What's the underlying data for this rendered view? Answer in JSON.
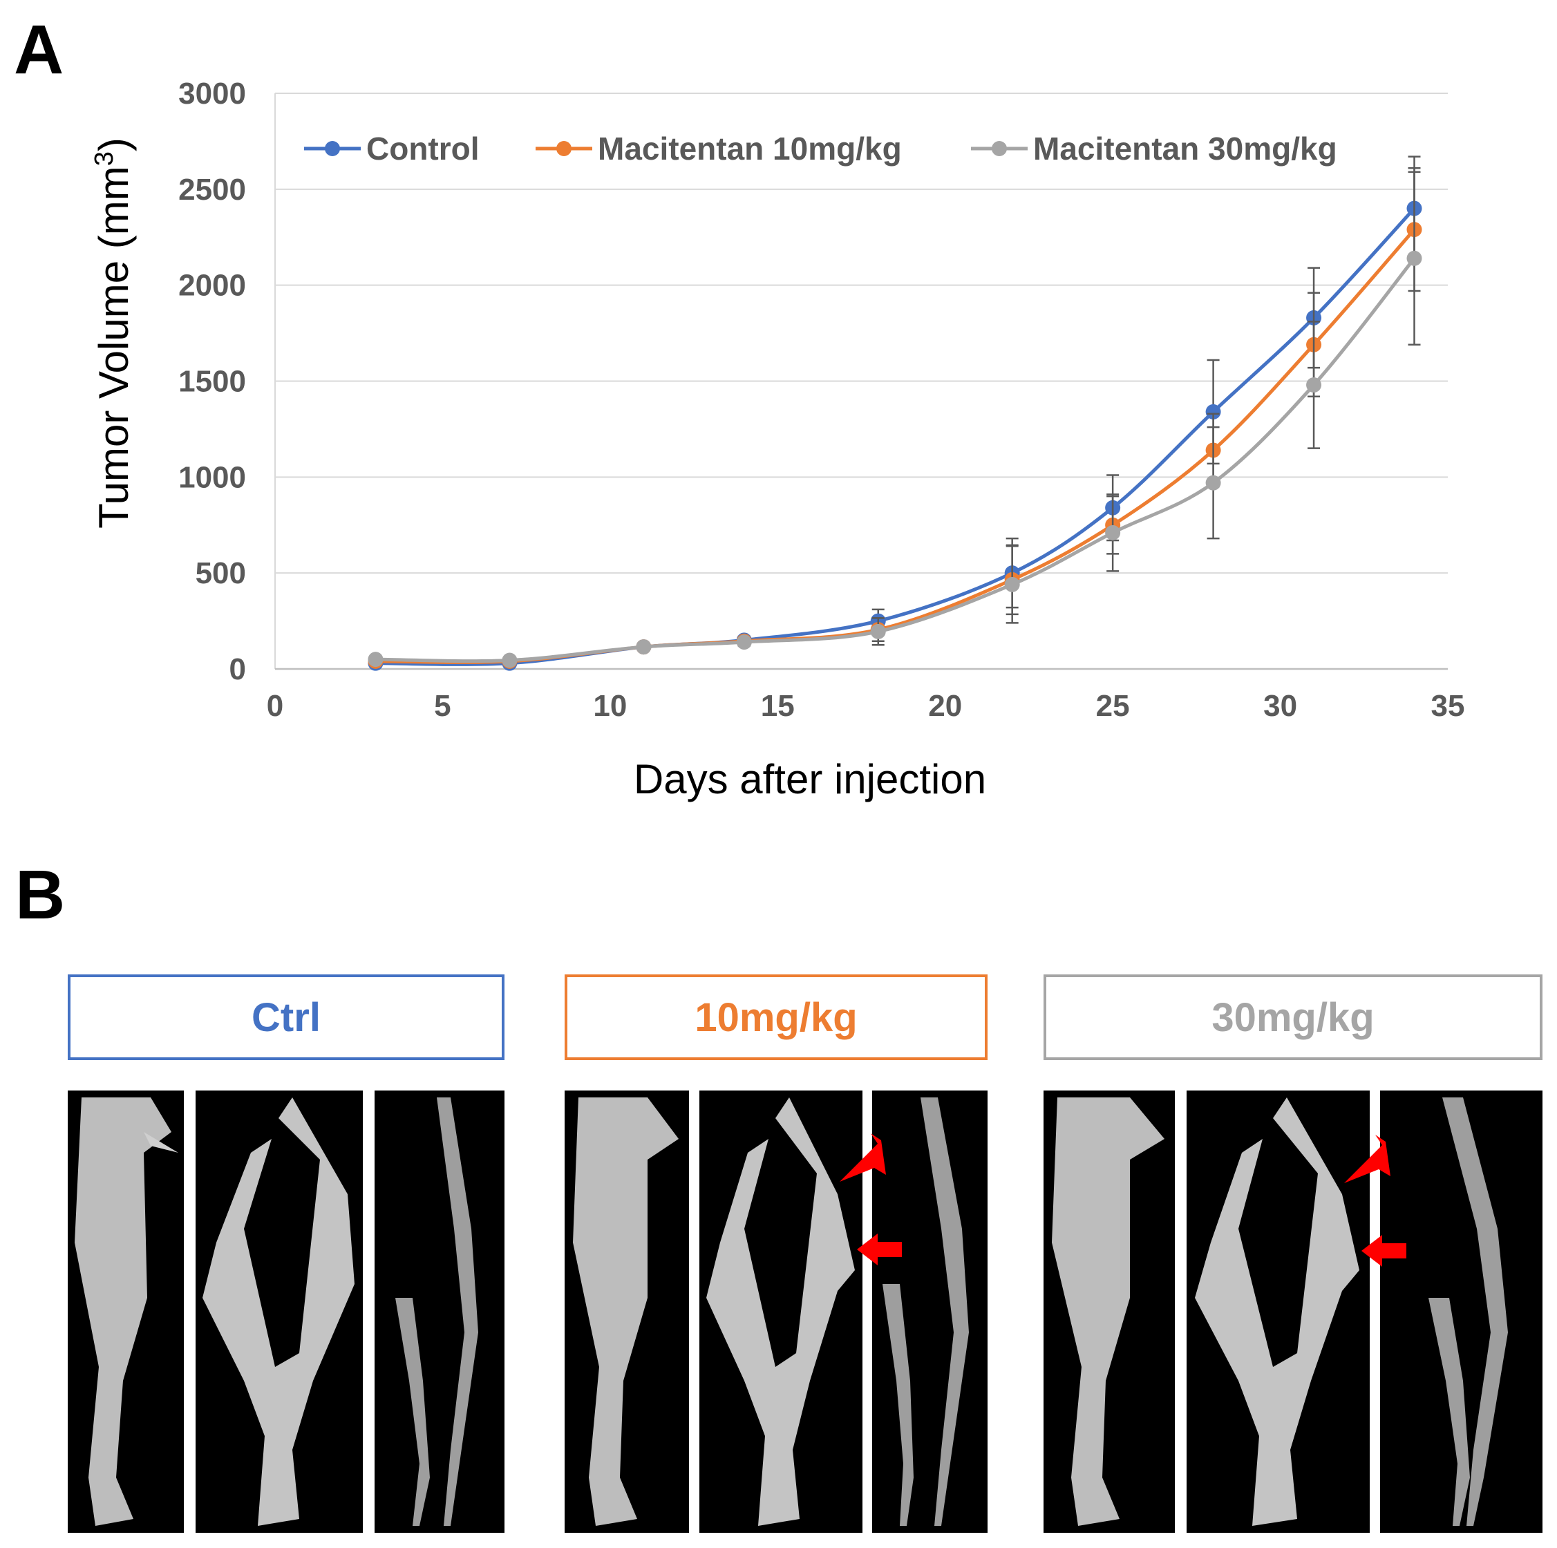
{
  "panel_a": {
    "label": "A"
  },
  "panel_b": {
    "label": "B"
  },
  "colors": {
    "control": "#4472c4",
    "mac10": "#ed7d31",
    "mac30": "#a5a5a5",
    "grid": "#d9d9d9",
    "axis": "#595959",
    "arrow": "#ff0000"
  },
  "chart_data": {
    "type": "line",
    "title": "",
    "xlabel": "Days after injection",
    "ylabel": "Tumor Volume (mm³)",
    "xlim": [
      0,
      35
    ],
    "ylim": [
      0,
      3000
    ],
    "xticks": [
      0,
      5,
      10,
      15,
      20,
      25,
      30,
      35
    ],
    "yticks": [
      0,
      500,
      1000,
      1500,
      2000,
      2500,
      3000
    ],
    "grid": true,
    "legend": "top",
    "x": [
      3,
      7,
      11,
      14,
      18,
      22,
      25,
      28,
      31,
      34
    ],
    "series": [
      {
        "name": "Control",
        "color": "#4472c4",
        "values": [
          30,
          30,
          115,
          150,
          250,
          500,
          840,
          1340,
          1830,
          2400
        ],
        "errors": [
          10,
          10,
          15,
          20,
          60,
          180,
          170,
          270,
          260,
          270
        ]
      },
      {
        "name": "Macitentan 10mg/kg",
        "color": "#ed7d31",
        "values": [
          40,
          40,
          115,
          145,
          205,
          465,
          750,
          1140,
          1690,
          2290
        ],
        "errors": [
          10,
          10,
          15,
          20,
          60,
          180,
          150,
          190,
          270,
          320
        ]
      },
      {
        "name": "Macitentan 30mg/kg",
        "color": "#a5a5a5",
        "values": [
          50,
          45,
          115,
          140,
          195,
          440,
          710,
          970,
          1480,
          2140
        ],
        "errors": [
          10,
          10,
          15,
          20,
          70,
          200,
          200,
          290,
          330,
          450
        ]
      }
    ]
  },
  "groups": [
    {
      "label": "Ctrl",
      "color": "#4472c4"
    },
    {
      "label": "10mg/kg",
      "color": "#ed7d31"
    },
    {
      "label": "30mg/kg",
      "color": "#a5a5a5"
    }
  ]
}
